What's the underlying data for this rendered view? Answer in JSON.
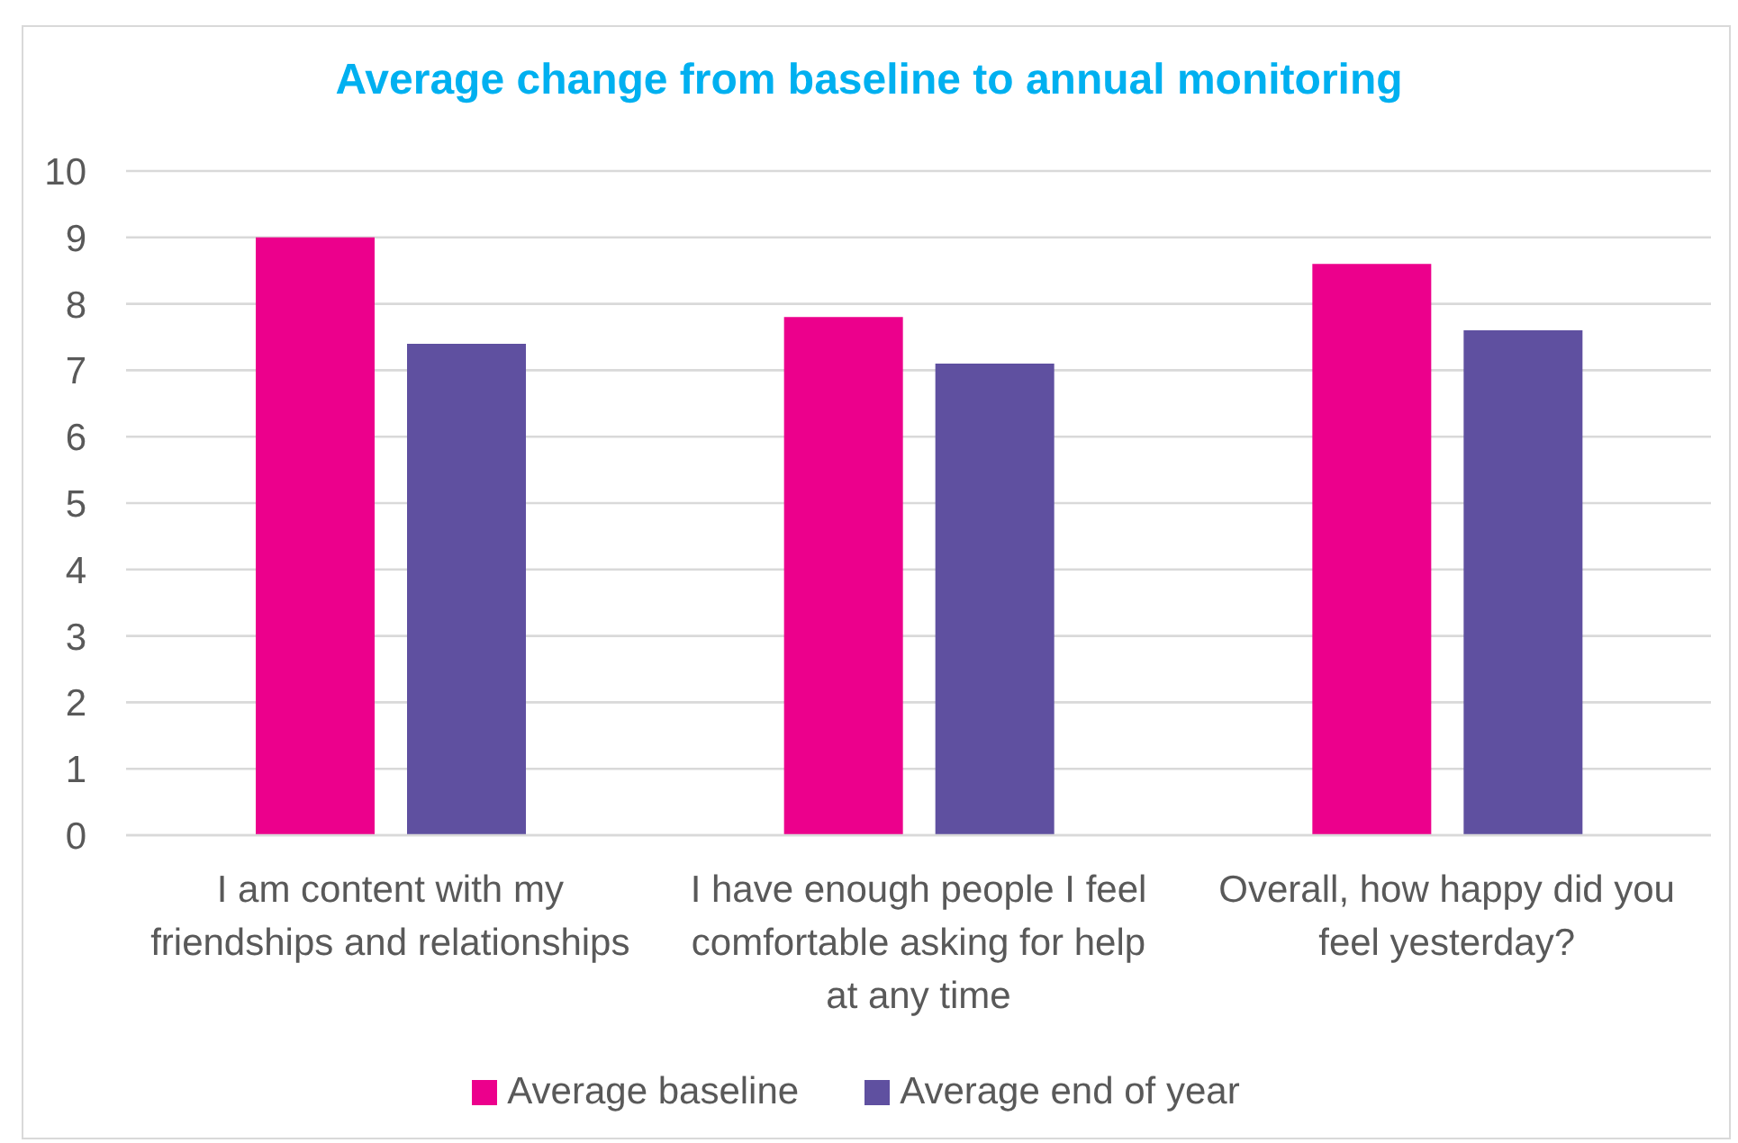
{
  "chart_data": {
    "type": "bar",
    "title": "Average change from baseline to annual monitoring",
    "categories": [
      "I am content with my friendships and relationships",
      "I have enough people I feel comfortable asking for help at any time",
      "Overall, how happy did you feel yesterday?"
    ],
    "series": [
      {
        "name": "Average baseline",
        "color": "#ec008c",
        "values": [
          9.0,
          7.8,
          8.6
        ]
      },
      {
        "name": "Average end of year",
        "color": "#5f50a0",
        "values": [
          7.4,
          7.1,
          7.6
        ]
      }
    ],
    "ylim": [
      0,
      10
    ],
    "yticks": [
      0,
      1,
      2,
      3,
      4,
      5,
      6,
      7,
      8,
      9,
      10
    ],
    "grid": "y",
    "legend": "bottom"
  }
}
